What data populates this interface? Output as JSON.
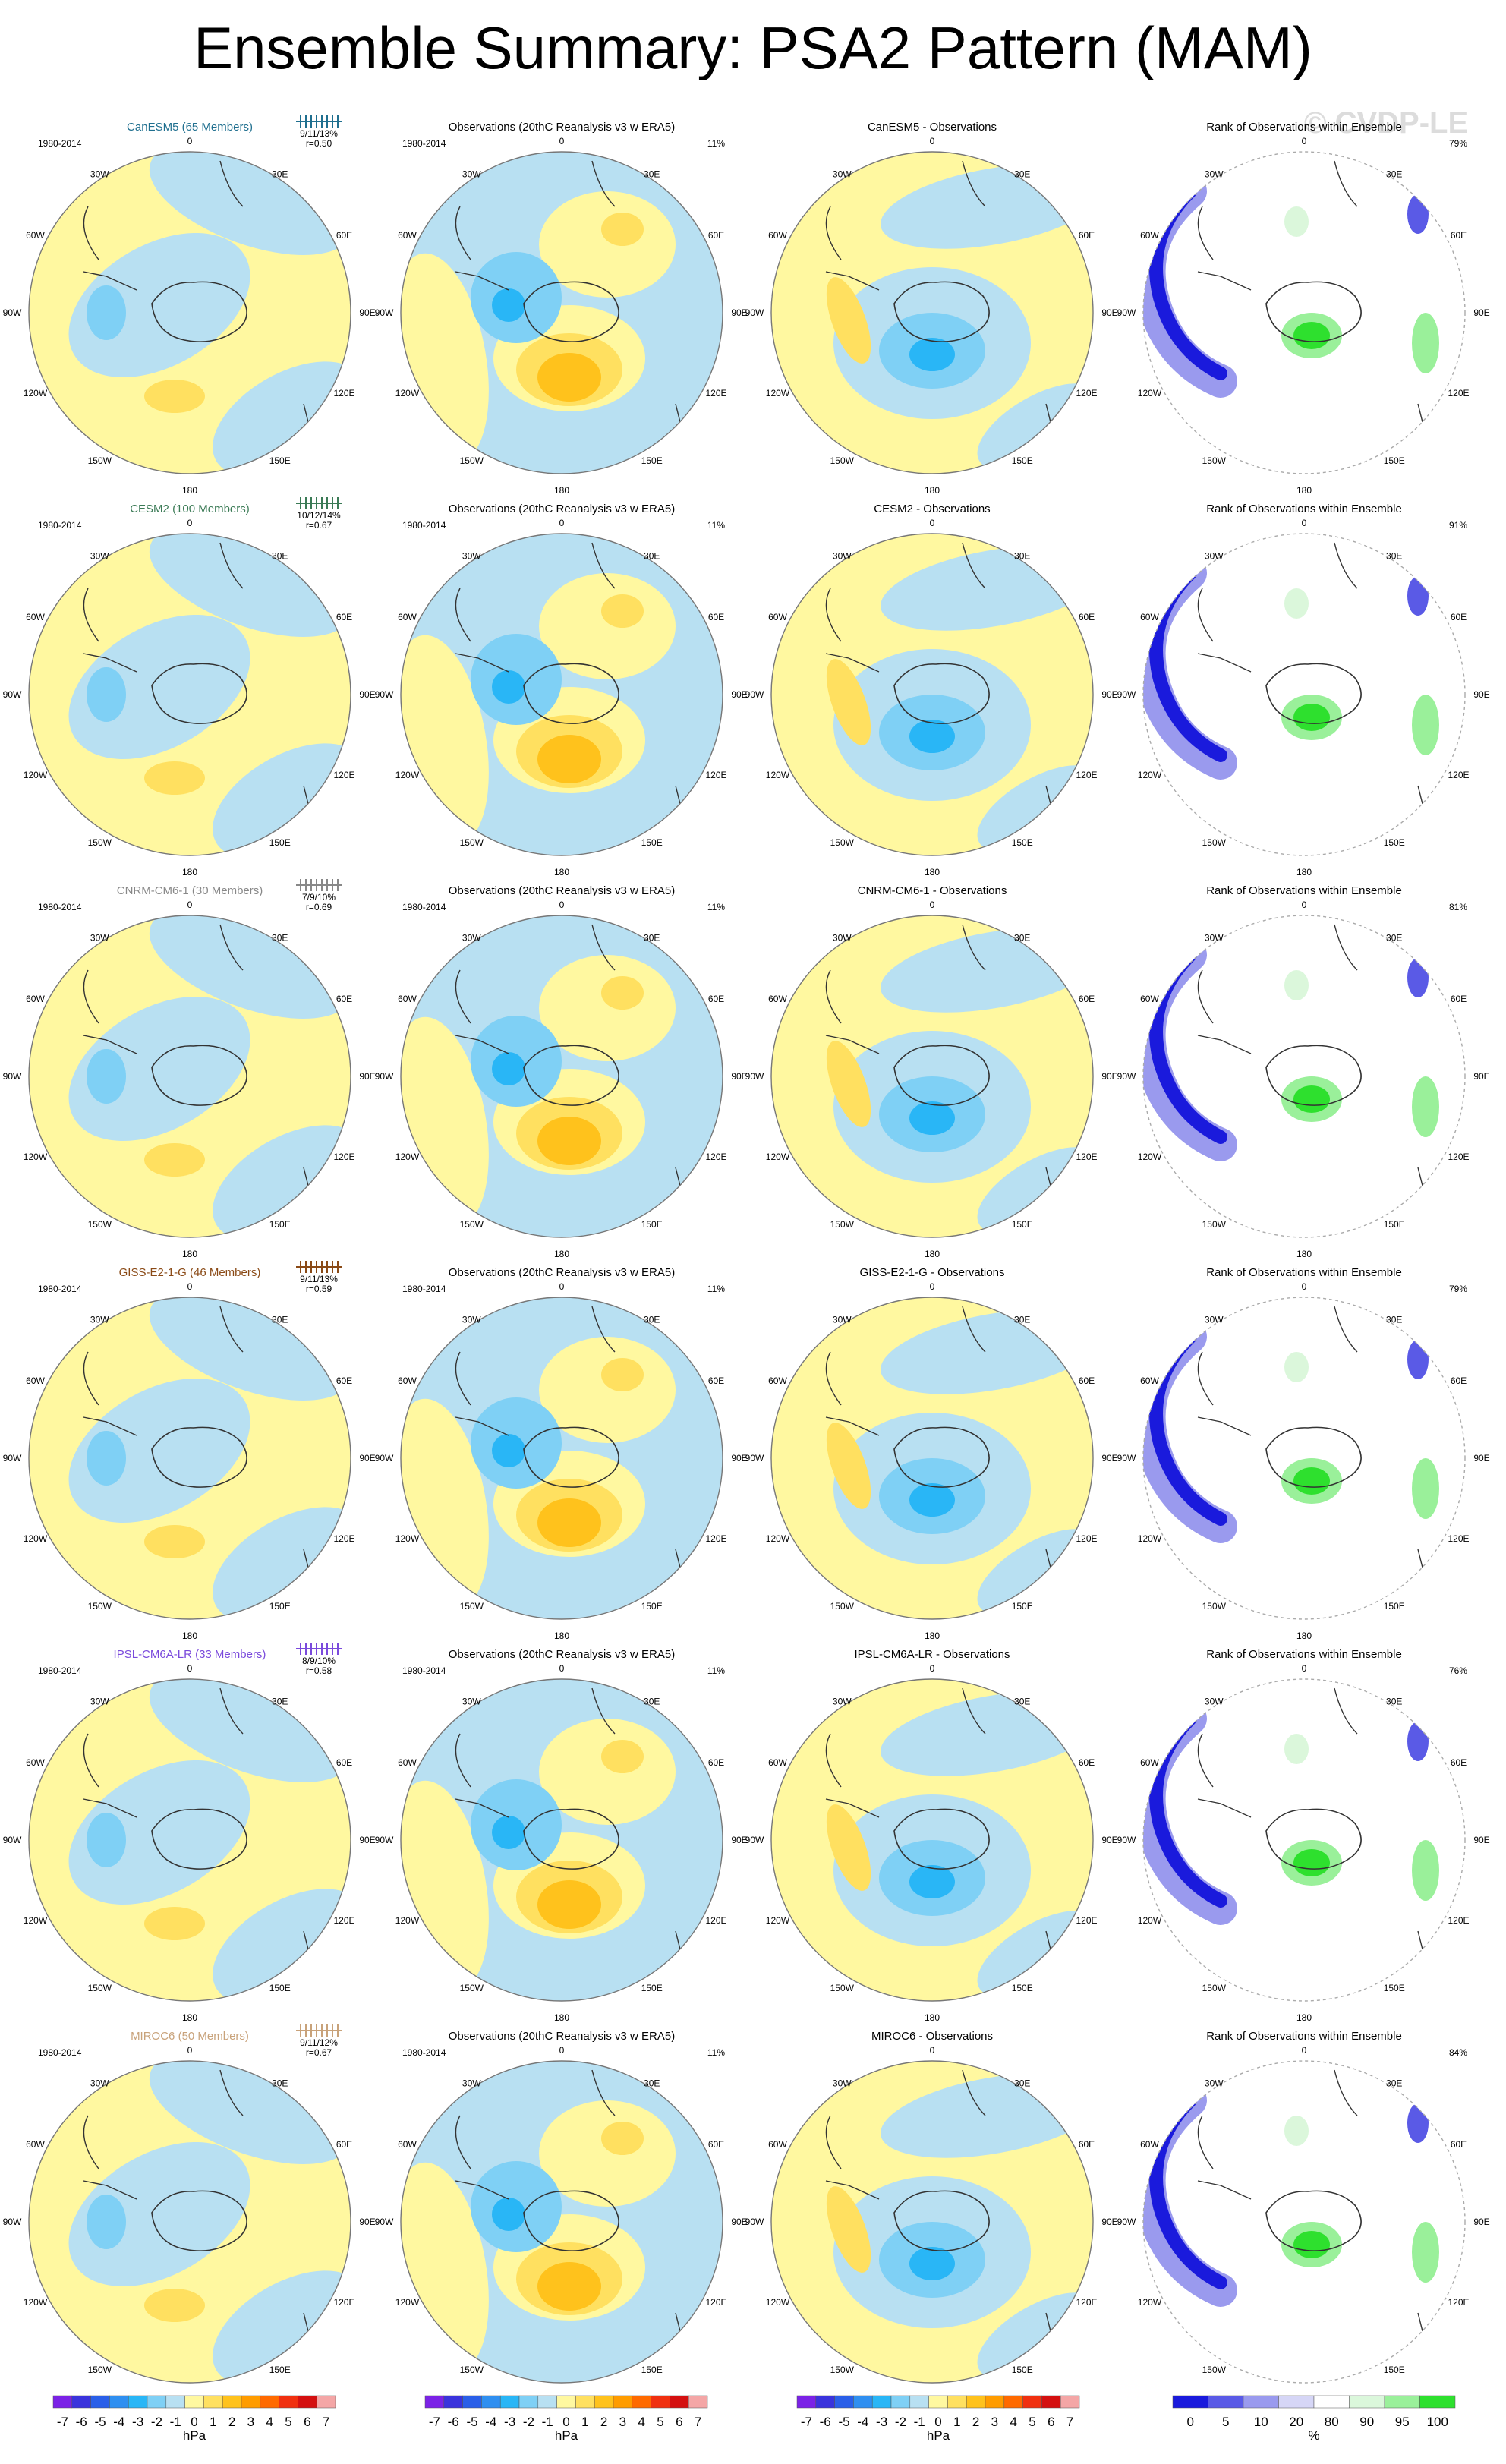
{
  "title": "Ensemble Summary: PSA2 Pattern (MAM)",
  "watermark": "© CVDP-LE",
  "period": "1980-2014",
  "obs_pct": "11%",
  "obs_title": "Observations (20thC Reanalysis v3 w ERA5)",
  "rank_title": "Rank of Observations within Ensemble",
  "diff_suffix": " - Observations",
  "lon_labels": [
    "0",
    "30E",
    "60E",
    "90E",
    "120E",
    "150E",
    "180",
    "150W",
    "120W",
    "90W",
    "60W",
    "30W"
  ],
  "units": "hPa",
  "rank_units": "%",
  "colors": {
    "hpa": [
      "#7b22e6",
      "#3a33dc",
      "#2a5fe8",
      "#2f8ff0",
      "#29b6f6",
      "#7fd0f5",
      "#b8e0f2",
      "#fff8a0",
      "#ffe060",
      "#ffc21c",
      "#ff9c00",
      "#ff6a00",
      "#f03010",
      "#d41010",
      "#f4a6a6"
    ],
    "rank": [
      "#1a1adc",
      "#5a5ae6",
      "#9a9aee",
      "#d6d6f6",
      "#ffffff",
      "#dbf7db",
      "#9af09a",
      "#2ee02e"
    ]
  },
  "chart_data": {
    "type": "heatmap",
    "rows": [
      {
        "model": "CanESM5",
        "members_label": "CanESM5 (65 Members)",
        "color": "#1f6f8f",
        "stats": "9/11/13%",
        "r": "r=0.50",
        "rank_pct": "79%"
      },
      {
        "model": "CESM2",
        "members_label": "CESM2 (100 Members)",
        "color": "#3a7a55",
        "stats": "10/12/14%",
        "r": "r=0.67",
        "rank_pct": "91%"
      },
      {
        "model": "CNRM-CM6-1",
        "members_label": "CNRM-CM6-1 (30 Members)",
        "color": "#888888",
        "stats": "7/9/10%",
        "r": "r=0.69",
        "rank_pct": "81%"
      },
      {
        "model": "GISS-E2-1-G",
        "members_label": "GISS-E2-1-G (46 Members)",
        "color": "#8a4a16",
        "stats": "9/11/13%",
        "r": "r=0.59",
        "rank_pct": "79%"
      },
      {
        "model": "IPSL-CM6A-LR",
        "members_label": "IPSL-CM6A-LR (33 Members)",
        "color": "#7a4adc",
        "stats": "8/9/10%",
        "r": "r=0.58",
        "rank_pct": "76%"
      },
      {
        "model": "MIROC6",
        "members_label": "MIROC6 (50 Members)",
        "color": "#c8a27a",
        "stats": "9/11/12%",
        "r": "r=0.67",
        "rank_pct": "84%"
      }
    ],
    "colorbar_hpa": {
      "ticks": [
        "-7",
        "-6",
        "-5",
        "-4",
        "-3",
        "-2",
        "-1",
        "0",
        "1",
        "2",
        "3",
        "4",
        "5",
        "6",
        "7"
      ],
      "label": "hPa"
    },
    "colorbar_rank": {
      "ticks": [
        "0",
        "5",
        "10",
        "20",
        "80",
        "90",
        "95",
        "100"
      ],
      "label": "%"
    }
  }
}
